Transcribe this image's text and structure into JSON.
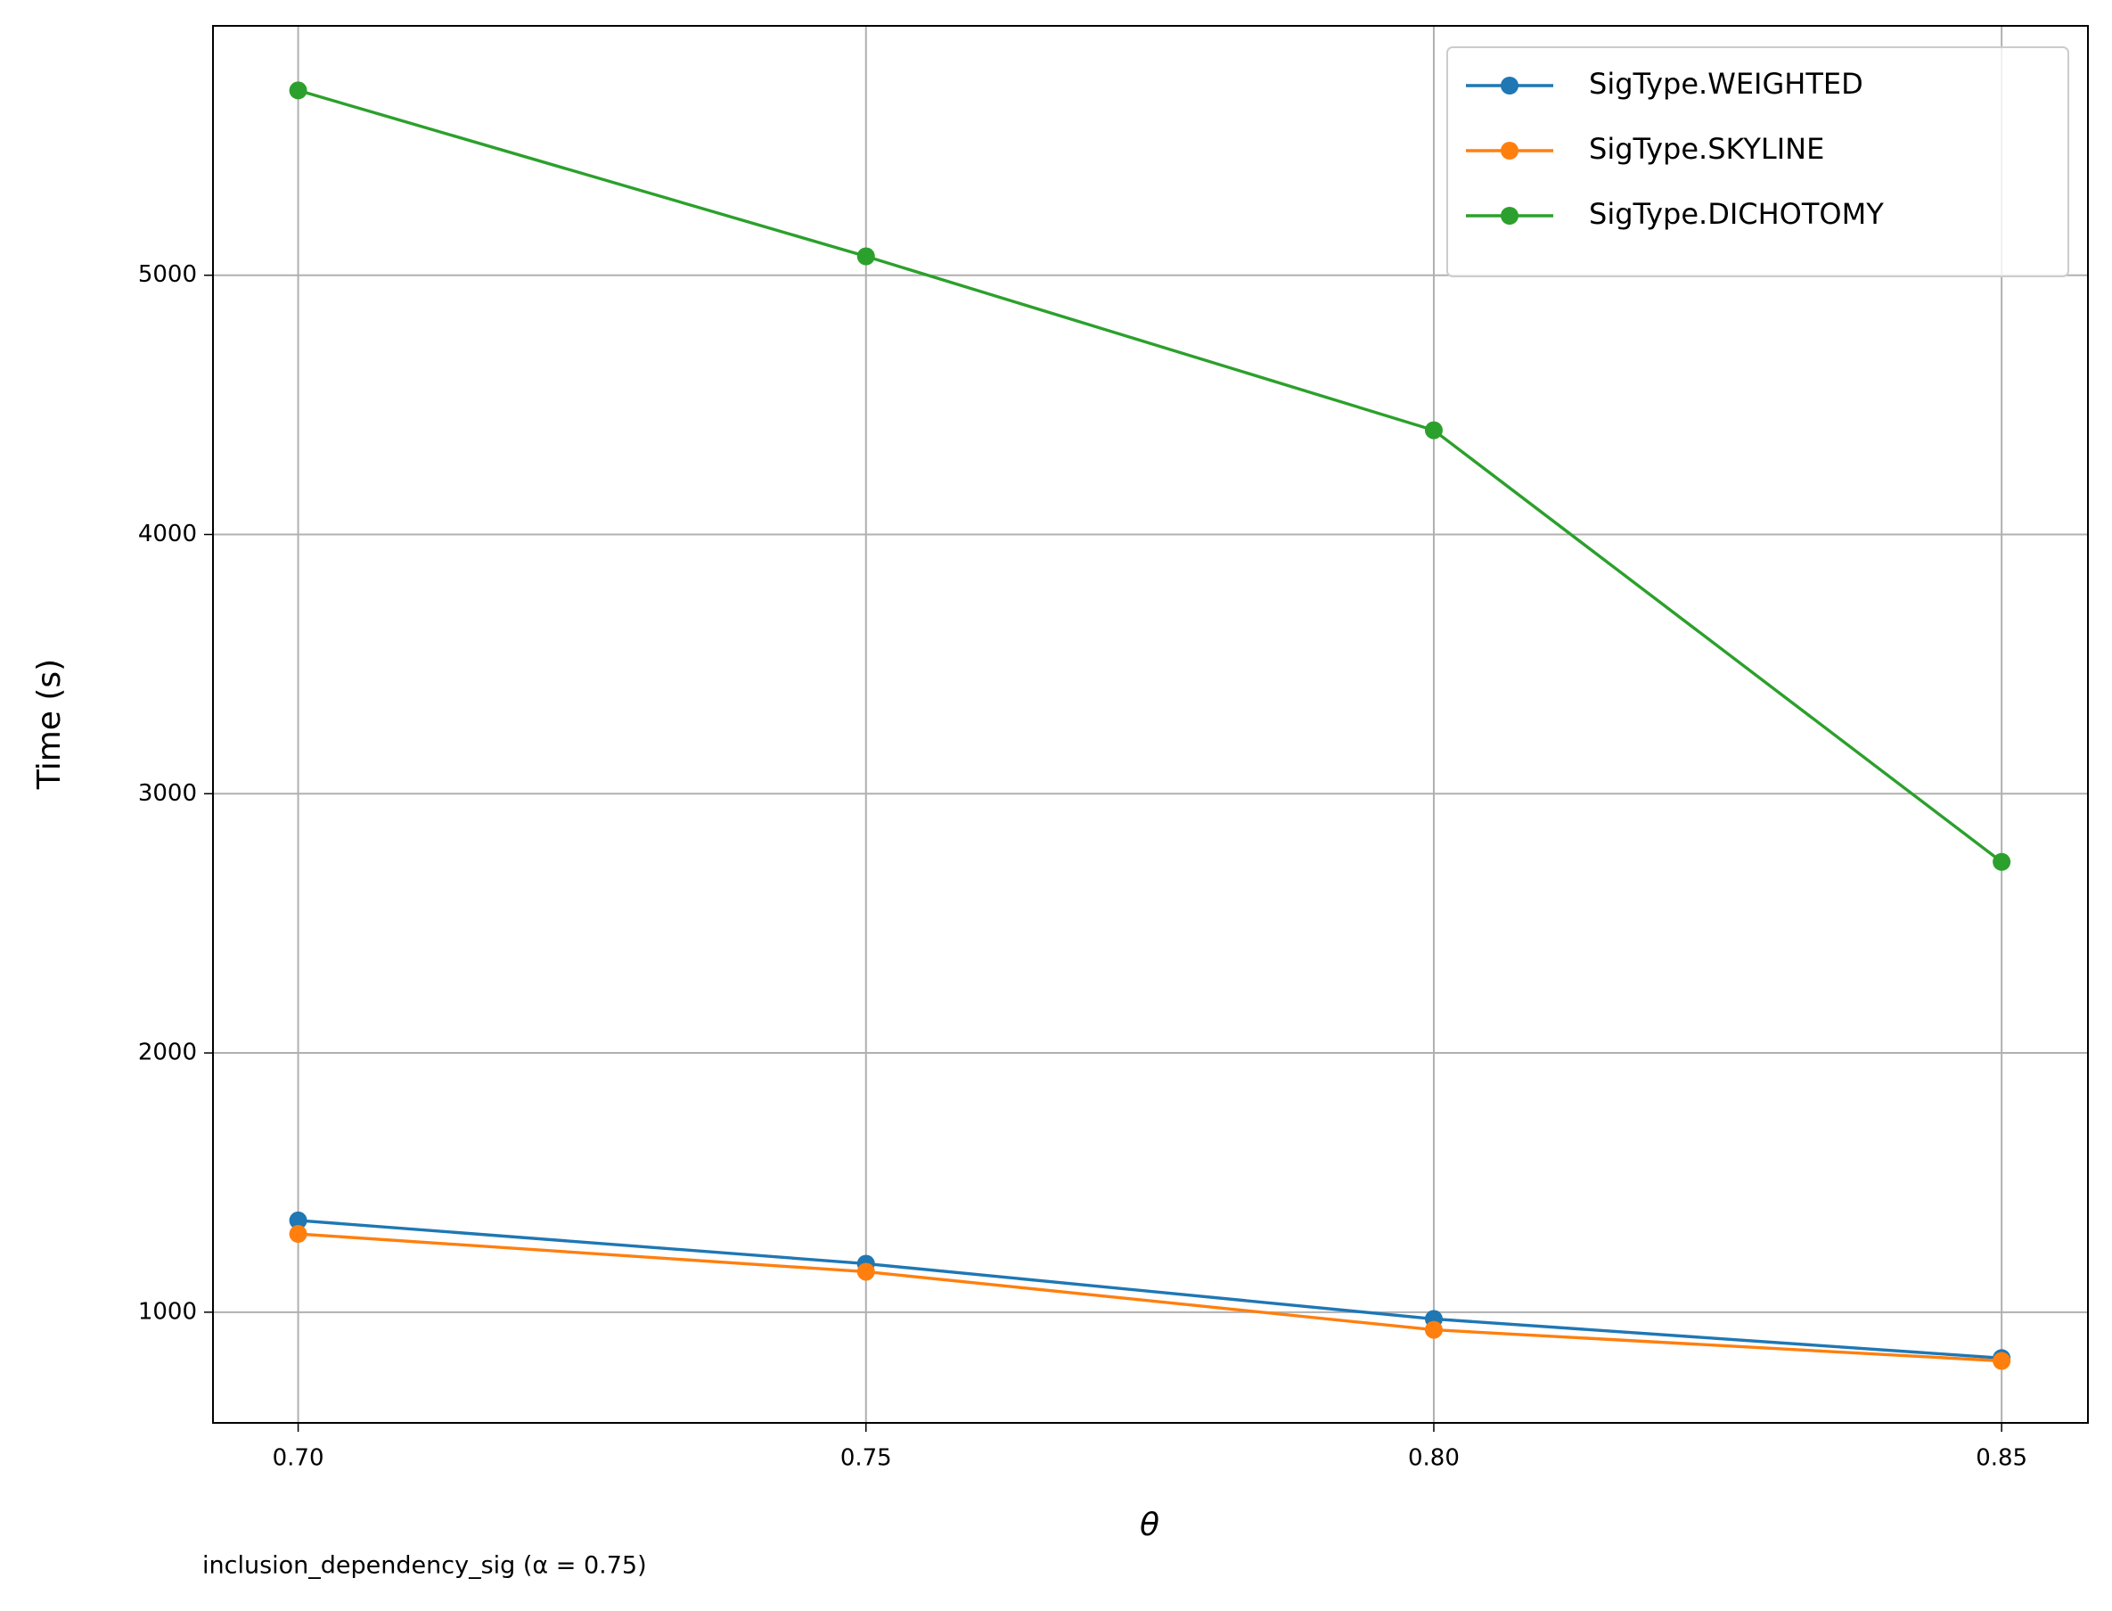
{
  "chart_data": {
    "type": "line",
    "subtitle": "inclusion_dependency_sig (α = 0.75)",
    "x_label": "θ",
    "y_label": "Time (s)",
    "x": [
      0.7,
      0.75,
      0.8,
      0.85
    ],
    "series": [
      {
        "name": "SigType.WEIGHTED",
        "color": "#1f77b4",
        "values": [
          1354,
          1187,
          974,
          823
        ]
      },
      {
        "name": "SigType.SKYLINE",
        "color": "#ff7f0e",
        "values": [
          1302,
          1156,
          932,
          812
        ]
      },
      {
        "name": "SigType.DICHOTOMY",
        "color": "#2ca02c",
        "values": [
          5713,
          5073,
          4402,
          2737
        ]
      }
    ],
    "xlim": [
      0.6925,
      0.8576
    ],
    "ylim": [
      573,
      5962
    ],
    "xticks": [
      {
        "value": 0.7,
        "label": "0.70"
      },
      {
        "value": 0.75,
        "label": "0.75"
      },
      {
        "value": 0.8,
        "label": "0.80"
      },
      {
        "value": 0.85,
        "label": "0.85"
      }
    ],
    "yticks": [
      1000,
      2000,
      3000,
      4000,
      5000
    ],
    "grid": true,
    "legend": "upper right"
  }
}
